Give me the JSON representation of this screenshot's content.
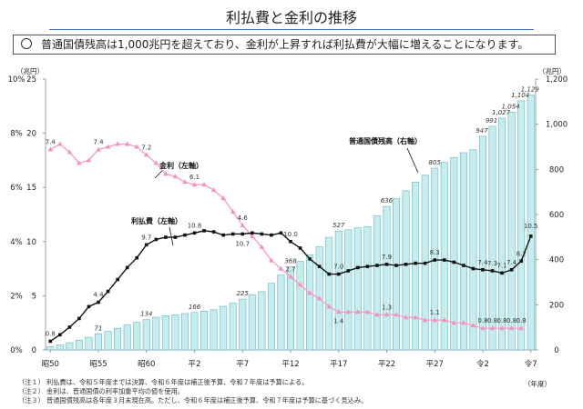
{
  "title": "利払費と金利の推移",
  "headline": "普通国債残高は1,000兆円を超えており、金利が上昇すれば利払費が大幅に増えることになります。",
  "colors": {
    "bar_fill": "#c6ecee",
    "bar_edge": "#5bb8c2",
    "interest_line": "#111111",
    "rate_line": "#f2a1c6",
    "rate_marker": "#f48fc0",
    "title_rule": "#3a7dc0"
  },
  "notes": [
    "（注１） 利払費は、令和５年度までは決算、令和６年度は補正後予算、令和７年度は予算による。",
    "（注２） 金利は、普通国債の利率加重平均の値を使用。",
    "（注３） 普通国債残高は各年度３月末現在高。ただし、令和６年度は補正後予算、令和７年度は予算に基づく見込み。"
  ],
  "chart_data": {
    "type": "bar+line",
    "x_categories": [
      "昭50",
      "昭51",
      "昭52",
      "昭53",
      "昭54",
      "昭55",
      "昭56",
      "昭57",
      "昭58",
      "昭59",
      "昭60",
      "昭61",
      "昭62",
      "昭63",
      "平1",
      "平2",
      "平3",
      "平4",
      "平5",
      "平6",
      "平7",
      "平8",
      "平9",
      "平10",
      "平11",
      "平12",
      "平13",
      "平14",
      "平15",
      "平16",
      "平17",
      "平18",
      "平19",
      "平20",
      "平21",
      "平22",
      "平23",
      "平24",
      "平25",
      "平26",
      "平27",
      "平28",
      "平29",
      "平30",
      "令1",
      "令2",
      "令3",
      "令4",
      "令5",
      "令6",
      "令7"
    ],
    "x_tick_labels": [
      "昭50",
      "昭55",
      "昭60",
      "平2",
      "平7",
      "平12",
      "平17",
      "平22",
      "平27",
      "令2",
      "令7"
    ],
    "x_unit": "（年度）",
    "left_axis": {
      "unit": "（兆円）",
      "range": [
        0,
        25
      ],
      "ticks": [
        "0",
        "5",
        "10",
        "15",
        "20",
        "25"
      ],
      "percent_ticks": [
        "0%",
        "2%",
        "4%",
        "6%",
        "8%",
        "10%"
      ]
    },
    "right_axis": {
      "unit": "（兆円）",
      "range": [
        0,
        1200
      ],
      "ticks": [
        "0",
        "200",
        "400",
        "600",
        "800",
        "1,000",
        "1,200"
      ]
    },
    "series": [
      {
        "name": "普通国債残高（右軸）",
        "type": "bar",
        "axis": "right",
        "values": [
          15,
          22,
          32,
          43,
          56,
          71,
          82,
          96,
          110,
          122,
          134,
          145,
          152,
          156,
          161,
          166,
          172,
          178,
          193,
          207,
          225,
          245,
          258,
          295,
          332,
          368,
          392,
          421,
          457,
          499,
          527,
          532,
          541,
          546,
          594,
          636,
          670,
          705,
          744,
          774,
          805,
          831,
          853,
          874,
          887,
          947,
          991,
          1027,
          1054,
          1104,
          1129
        ],
        "labels": [
          {
            "i": 5,
            "text": "71"
          },
          {
            "i": 10,
            "text": "134"
          },
          {
            "i": 15,
            "text": "166"
          },
          {
            "i": 20,
            "text": "225"
          },
          {
            "i": 25,
            "text": "368"
          },
          {
            "i": 30,
            "text": "527"
          },
          {
            "i": 35,
            "text": "636"
          },
          {
            "i": 40,
            "text": "805"
          },
          {
            "i": 45,
            "text": "947"
          },
          {
            "i": 46,
            "text": "991"
          },
          {
            "i": 47,
            "text": "1,027"
          },
          {
            "i": 48,
            "text": "1,054"
          },
          {
            "i": 49,
            "text": "1,104"
          },
          {
            "i": 50,
            "text": "1,129"
          }
        ]
      },
      {
        "name": "利払費（左軸）",
        "type": "line",
        "axis": "left",
        "values": [
          0.8,
          1.4,
          2.1,
          2.9,
          4.0,
          4.4,
          5.4,
          6.5,
          7.6,
          8.5,
          9.7,
          10.2,
          10.4,
          10.4,
          10.6,
          10.8,
          11.0,
          10.9,
          10.6,
          10.7,
          10.7,
          10.8,
          10.7,
          10.6,
          10.8,
          10.0,
          9.4,
          8.4,
          7.7,
          7.0,
          7.0,
          7.3,
          7.6,
          7.7,
          7.8,
          7.9,
          7.8,
          7.9,
          8.0,
          8.0,
          8.3,
          8.3,
          8.1,
          7.8,
          7.5,
          7.4,
          7.3,
          7.1,
          7.4,
          8.2,
          10.5
        ],
        "labels": [
          {
            "i": 0,
            "text": "0.8"
          },
          {
            "i": 5,
            "text": "4.4"
          },
          {
            "i": 10,
            "text": "9.7"
          },
          {
            "i": 15,
            "text": "10.8"
          },
          {
            "i": 20,
            "text": "10.7"
          },
          {
            "i": 25,
            "text": "10.0"
          },
          {
            "i": 30,
            "text": "7.0"
          },
          {
            "i": 35,
            "text": "7.9"
          },
          {
            "i": 40,
            "text": "8.3"
          },
          {
            "i": 45,
            "text": "7.4"
          },
          {
            "i": 46,
            "text": "7.3"
          },
          {
            "i": 47,
            "text": "7.1"
          },
          {
            "i": 48,
            "text": "7.4"
          },
          {
            "i": 49,
            "text": "8.2"
          },
          {
            "i": 50,
            "text": "10.5"
          }
        ]
      },
      {
        "name": "金利（左軸）",
        "type": "line",
        "axis": "left_percent",
        "values": [
          7.4,
          7.6,
          7.3,
          6.9,
          7.0,
          7.4,
          7.5,
          7.6,
          7.6,
          7.5,
          7.2,
          6.9,
          6.5,
          6.4,
          6.2,
          6.1,
          6.1,
          5.9,
          5.6,
          5.1,
          4.6,
          4.2,
          3.8,
          3.3,
          3.0,
          2.7,
          2.4,
          2.1,
          1.9,
          1.6,
          1.4,
          1.4,
          1.4,
          1.4,
          1.3,
          1.3,
          1.3,
          1.2,
          1.2,
          1.1,
          1.1,
          1.1,
          1.0,
          1.0,
          0.9,
          0.8,
          0.8,
          0.8,
          0.8,
          0.8
        ],
        "labels": [
          {
            "i": 0,
            "text": "7.4"
          },
          {
            "i": 5,
            "text": "7.4"
          },
          {
            "i": 10,
            "text": "7.2"
          },
          {
            "i": 15,
            "text": "6.1"
          },
          {
            "i": 20,
            "text": "4.6"
          },
          {
            "i": 25,
            "text": "2.7"
          },
          {
            "i": 30,
            "text": "1.4"
          },
          {
            "i": 35,
            "text": "1.3"
          },
          {
            "i": 40,
            "text": "1.1"
          },
          {
            "i": 45,
            "text": "0.8"
          },
          {
            "i": 46,
            "text": "0.8"
          },
          {
            "i": 47,
            "text": "0.8"
          },
          {
            "i": 48,
            "text": "0.8"
          },
          {
            "i": 49,
            "text": "0.8"
          }
        ]
      }
    ],
    "annotations": [
      {
        "text": "金利（左軸）",
        "target": "金利（左軸）"
      },
      {
        "text": "利払費（左軸）",
        "target": "利払費（左軸）"
      },
      {
        "text": "普通国債残高（右軸）",
        "target": "普通国債残高（右軸）"
      }
    ]
  }
}
